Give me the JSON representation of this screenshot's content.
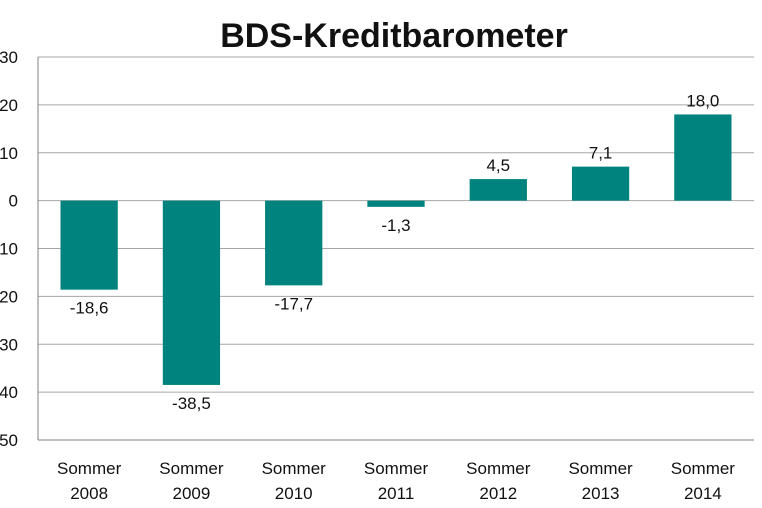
{
  "chart_data": {
    "type": "bar",
    "title": "BDS-Kreditbarometer",
    "xlabel": "",
    "ylabel": "",
    "categories": [
      [
        "Sommer",
        "2008"
      ],
      [
        "Sommer",
        "2009"
      ],
      [
        "Sommer",
        "2010"
      ],
      [
        "Sommer",
        "2011"
      ],
      [
        "Sommer",
        "2012"
      ],
      [
        "Sommer",
        "2013"
      ],
      [
        "Sommer",
        "2014"
      ]
    ],
    "values": [
      -18.6,
      -38.5,
      -17.7,
      -1.3,
      4.5,
      7.1,
      18.0
    ],
    "value_labels": [
      "-18,6",
      "-38,5",
      "-17,7",
      "-1,3",
      "4,5",
      "7,1",
      "18,0"
    ],
    "ylim": [
      -50,
      30
    ],
    "yticks": [
      30,
      20,
      10,
      0,
      -10,
      -20,
      -30,
      -40,
      -50
    ],
    "ytick_labels": [
      "30",
      "20",
      "10",
      "0",
      "10",
      "20",
      "30",
      "40",
      "50"
    ],
    "grid": true,
    "legend": "none",
    "bar_color": "#00837f"
  }
}
